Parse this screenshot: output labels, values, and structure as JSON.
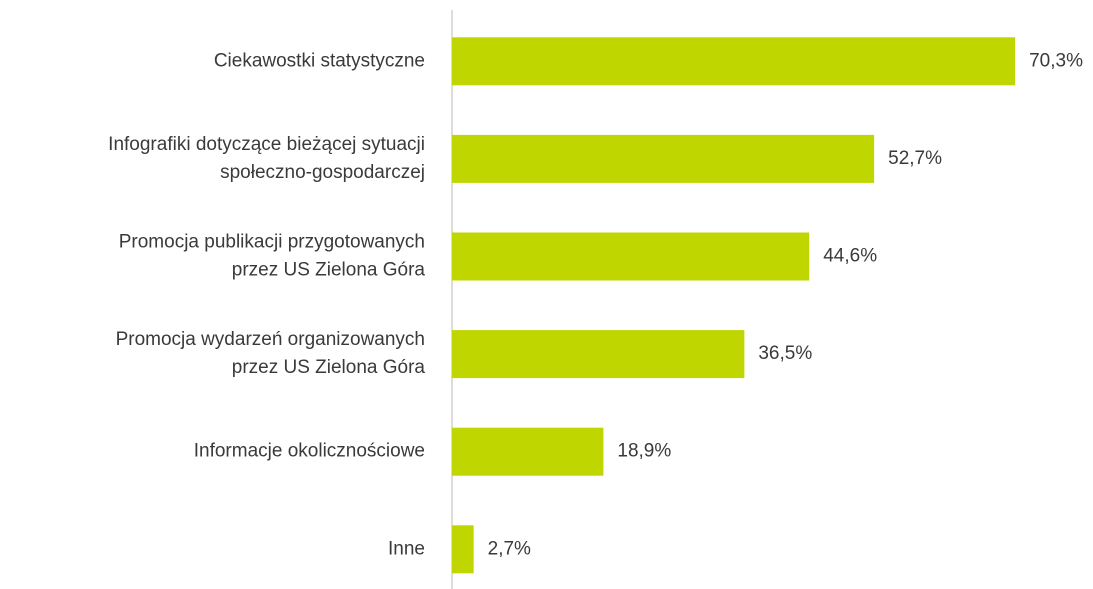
{
  "chart_data": {
    "type": "bar",
    "orientation": "horizontal",
    "categories": [
      [
        "Ciekawostki statystyczne"
      ],
      [
        "Infografiki dotyczące bieżącej sytuacji",
        "społeczno-gospodarczej"
      ],
      [
        "Promocja publikacji przygotowanych",
        "przez US Zielona Góra"
      ],
      [
        "Promocja wydarzeń organizowanych",
        "przez US Zielona Góra"
      ],
      [
        "Informacje okolicznościowe"
      ],
      [
        "Inne"
      ]
    ],
    "values": [
      70.3,
      52.7,
      44.6,
      36.5,
      18.9,
      2.7
    ],
    "value_labels": [
      "70,3%",
      "52,7%",
      "44,6%",
      "36,5%",
      "18,9%",
      "2,7%"
    ],
    "color": "#bfd600"
  }
}
